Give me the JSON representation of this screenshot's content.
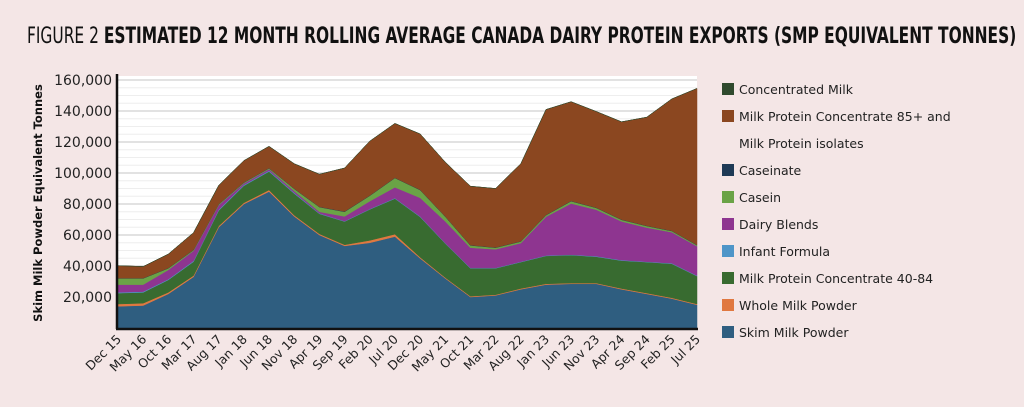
{
  "title": {
    "prefix": "FIGURE 2",
    "main": "ESTIMATED 12 MONTH ROLLING AVERAGE CANADA DAIRY PROTEIN EXPORTS (SMP EQUIVALENT TONNES)"
  },
  "chart_data": {
    "type": "area",
    "stacked": true,
    "title": "FIGURE 2 ESTIMATED 12 MONTH ROLLING AVERAGE CANADA DAIRY PROTEIN EXPORTS (SMP EQUIVALENT TONNES)",
    "xlabel": "",
    "ylabel": "Skim Milk Powder Equivalent Tonnes",
    "ylim": [
      0,
      160000
    ],
    "yticks": [
      20000,
      40000,
      60000,
      80000,
      100000,
      120000,
      140000,
      160000
    ],
    "ytick_labels": [
      "20,000",
      "40,000",
      "60,000",
      "80,000",
      "100,000",
      "120,000",
      "140,000",
      "160,000"
    ],
    "grid": true,
    "legend_position": "right",
    "x": [
      "Dec 15",
      "May 16",
      "Oct 16",
      "Mar 17",
      "Aug 17",
      "Jan 18",
      "Jun 18",
      "Nov 18",
      "Apr 19",
      "Sep 19",
      "Feb 20",
      "Jul 20",
      "Dec 20",
      "May 21",
      "Oct 21",
      "Mar 22",
      "Aug 22",
      "Jan 23",
      "Jun 23",
      "Nov 23",
      "Apr 24",
      "Sep 24",
      "Feb 25",
      "Jul 25"
    ],
    "xtick_labels": [
      "Dec 15",
      "May 16",
      "Oct 16",
      "Mar 17",
      "Aug 17",
      "Jan 18",
      "Jun 18",
      "Nov 18",
      "Apr 19",
      "Sep 19",
      "Feb 20",
      "Jul 20",
      "Dec 20",
      "May 21",
      "Oct 21",
      "Mar 22",
      "Aug 22",
      "Jan 23",
      "Jun 23",
      "Nov 23",
      "Apr 24",
      "Sep 24",
      "Feb 25",
      "Jul 25"
    ],
    "series": [
      {
        "name": "Skim Milk Powder",
        "color": "#2f5e80",
        "values": [
          14000,
          14500,
          22000,
          33000,
          65000,
          80000,
          88000,
          72000,
          60000,
          53000,
          55000,
          59000,
          45000,
          32000,
          20000,
          21000,
          25000,
          28000,
          28500,
          28500,
          25000,
          22000,
          19000,
          15000
        ]
      },
      {
        "name": "Whole Milk Powder",
        "color": "#e07840",
        "values": [
          1500,
          1500,
          1000,
          800,
          800,
          800,
          1000,
          800,
          700,
          700,
          1500,
          1500,
          700,
          500,
          500,
          500,
          500,
          500,
          500,
          500,
          500,
          500,
          500,
          500
        ]
      },
      {
        "name": "Milk Protein Concentrate 40-84",
        "color": "#386b30",
        "values": [
          7000,
          7000,
          8000,
          9000,
          10000,
          11000,
          12000,
          14000,
          13000,
          15000,
          20000,
          23000,
          26000,
          22000,
          18000,
          17000,
          17000,
          18000,
          18000,
          17000,
          18000,
          20000,
          22000,
          18000
        ]
      },
      {
        "name": "Infant Formula",
        "color": "#4e95c8",
        "values": [
          500,
          500,
          500,
          500,
          500,
          500,
          500,
          500,
          300,
          300,
          300,
          300,
          300,
          300,
          300,
          300,
          300,
          300,
          300,
          300,
          300,
          300,
          300,
          300
        ]
      },
      {
        "name": "Dairy Blends",
        "color": "#8e3590",
        "values": [
          5000,
          4500,
          6000,
          6500,
          3000,
          1000,
          1000,
          1000,
          1000,
          3000,
          5000,
          7000,
          12000,
          14000,
          13000,
          12000,
          12000,
          25000,
          33000,
          30000,
          25000,
          22000,
          20000,
          19000
        ]
      },
      {
        "name": "Casein",
        "color": "#6aa346",
        "values": [
          4000,
          4000,
          1000,
          500,
          500,
          500,
          500,
          1500,
          3000,
          3000,
          3500,
          6000,
          5000,
          3000,
          1500,
          1000,
          1000,
          1000,
          1500,
          1200,
          1000,
          1000,
          800,
          600
        ]
      },
      {
        "name": "Caseinate",
        "color": "#1e3a56",
        "values": [
          200,
          200,
          200,
          200,
          200,
          200,
          200,
          200,
          200,
          200,
          200,
          200,
          200,
          200,
          200,
          200,
          200,
          200,
          200,
          200,
          200,
          200,
          200,
          200
        ]
      },
      {
        "name": "Milk Protein Concentrate 85+ and Milk Protein isolates",
        "color": "#8b4720",
        "values": [
          8000,
          7500,
          9000,
          11000,
          12000,
          14000,
          14000,
          16000,
          21000,
          28000,
          35000,
          35000,
          36000,
          35000,
          38000,
          38000,
          50000,
          68000,
          64000,
          62000,
          63000,
          70000,
          85000,
          101000
        ]
      },
      {
        "name": "Concentrated Milk",
        "color": "#2f4a2e",
        "values": [
          0,
          0,
          0,
          0,
          0,
          0,
          0,
          0,
          0,
          0,
          0,
          0,
          0,
          0,
          0,
          0,
          0,
          0,
          0,
          0,
          0,
          0,
          0,
          0
        ]
      }
    ]
  },
  "legend": [
    {
      "label": "Concentrated Milk",
      "color": "#2f4a2e"
    },
    {
      "label": "Milk Protein Concentrate 85+ and\nMilk Protein isolates",
      "color": "#8b4720"
    },
    {
      "label": "Caseinate",
      "color": "#1e3a56"
    },
    {
      "label": "Casein",
      "color": "#6aa346"
    },
    {
      "label": "Dairy Blends",
      "color": "#8e3590"
    },
    {
      "label": "Infant Formula",
      "color": "#4e95c8"
    },
    {
      "label": "Milk Protein Concentrate 40-84",
      "color": "#386b30"
    },
    {
      "label": "Whole Milk Powder",
      "color": "#e07840"
    },
    {
      "label": "Skim Milk Powder",
      "color": "#2f5e80"
    }
  ]
}
